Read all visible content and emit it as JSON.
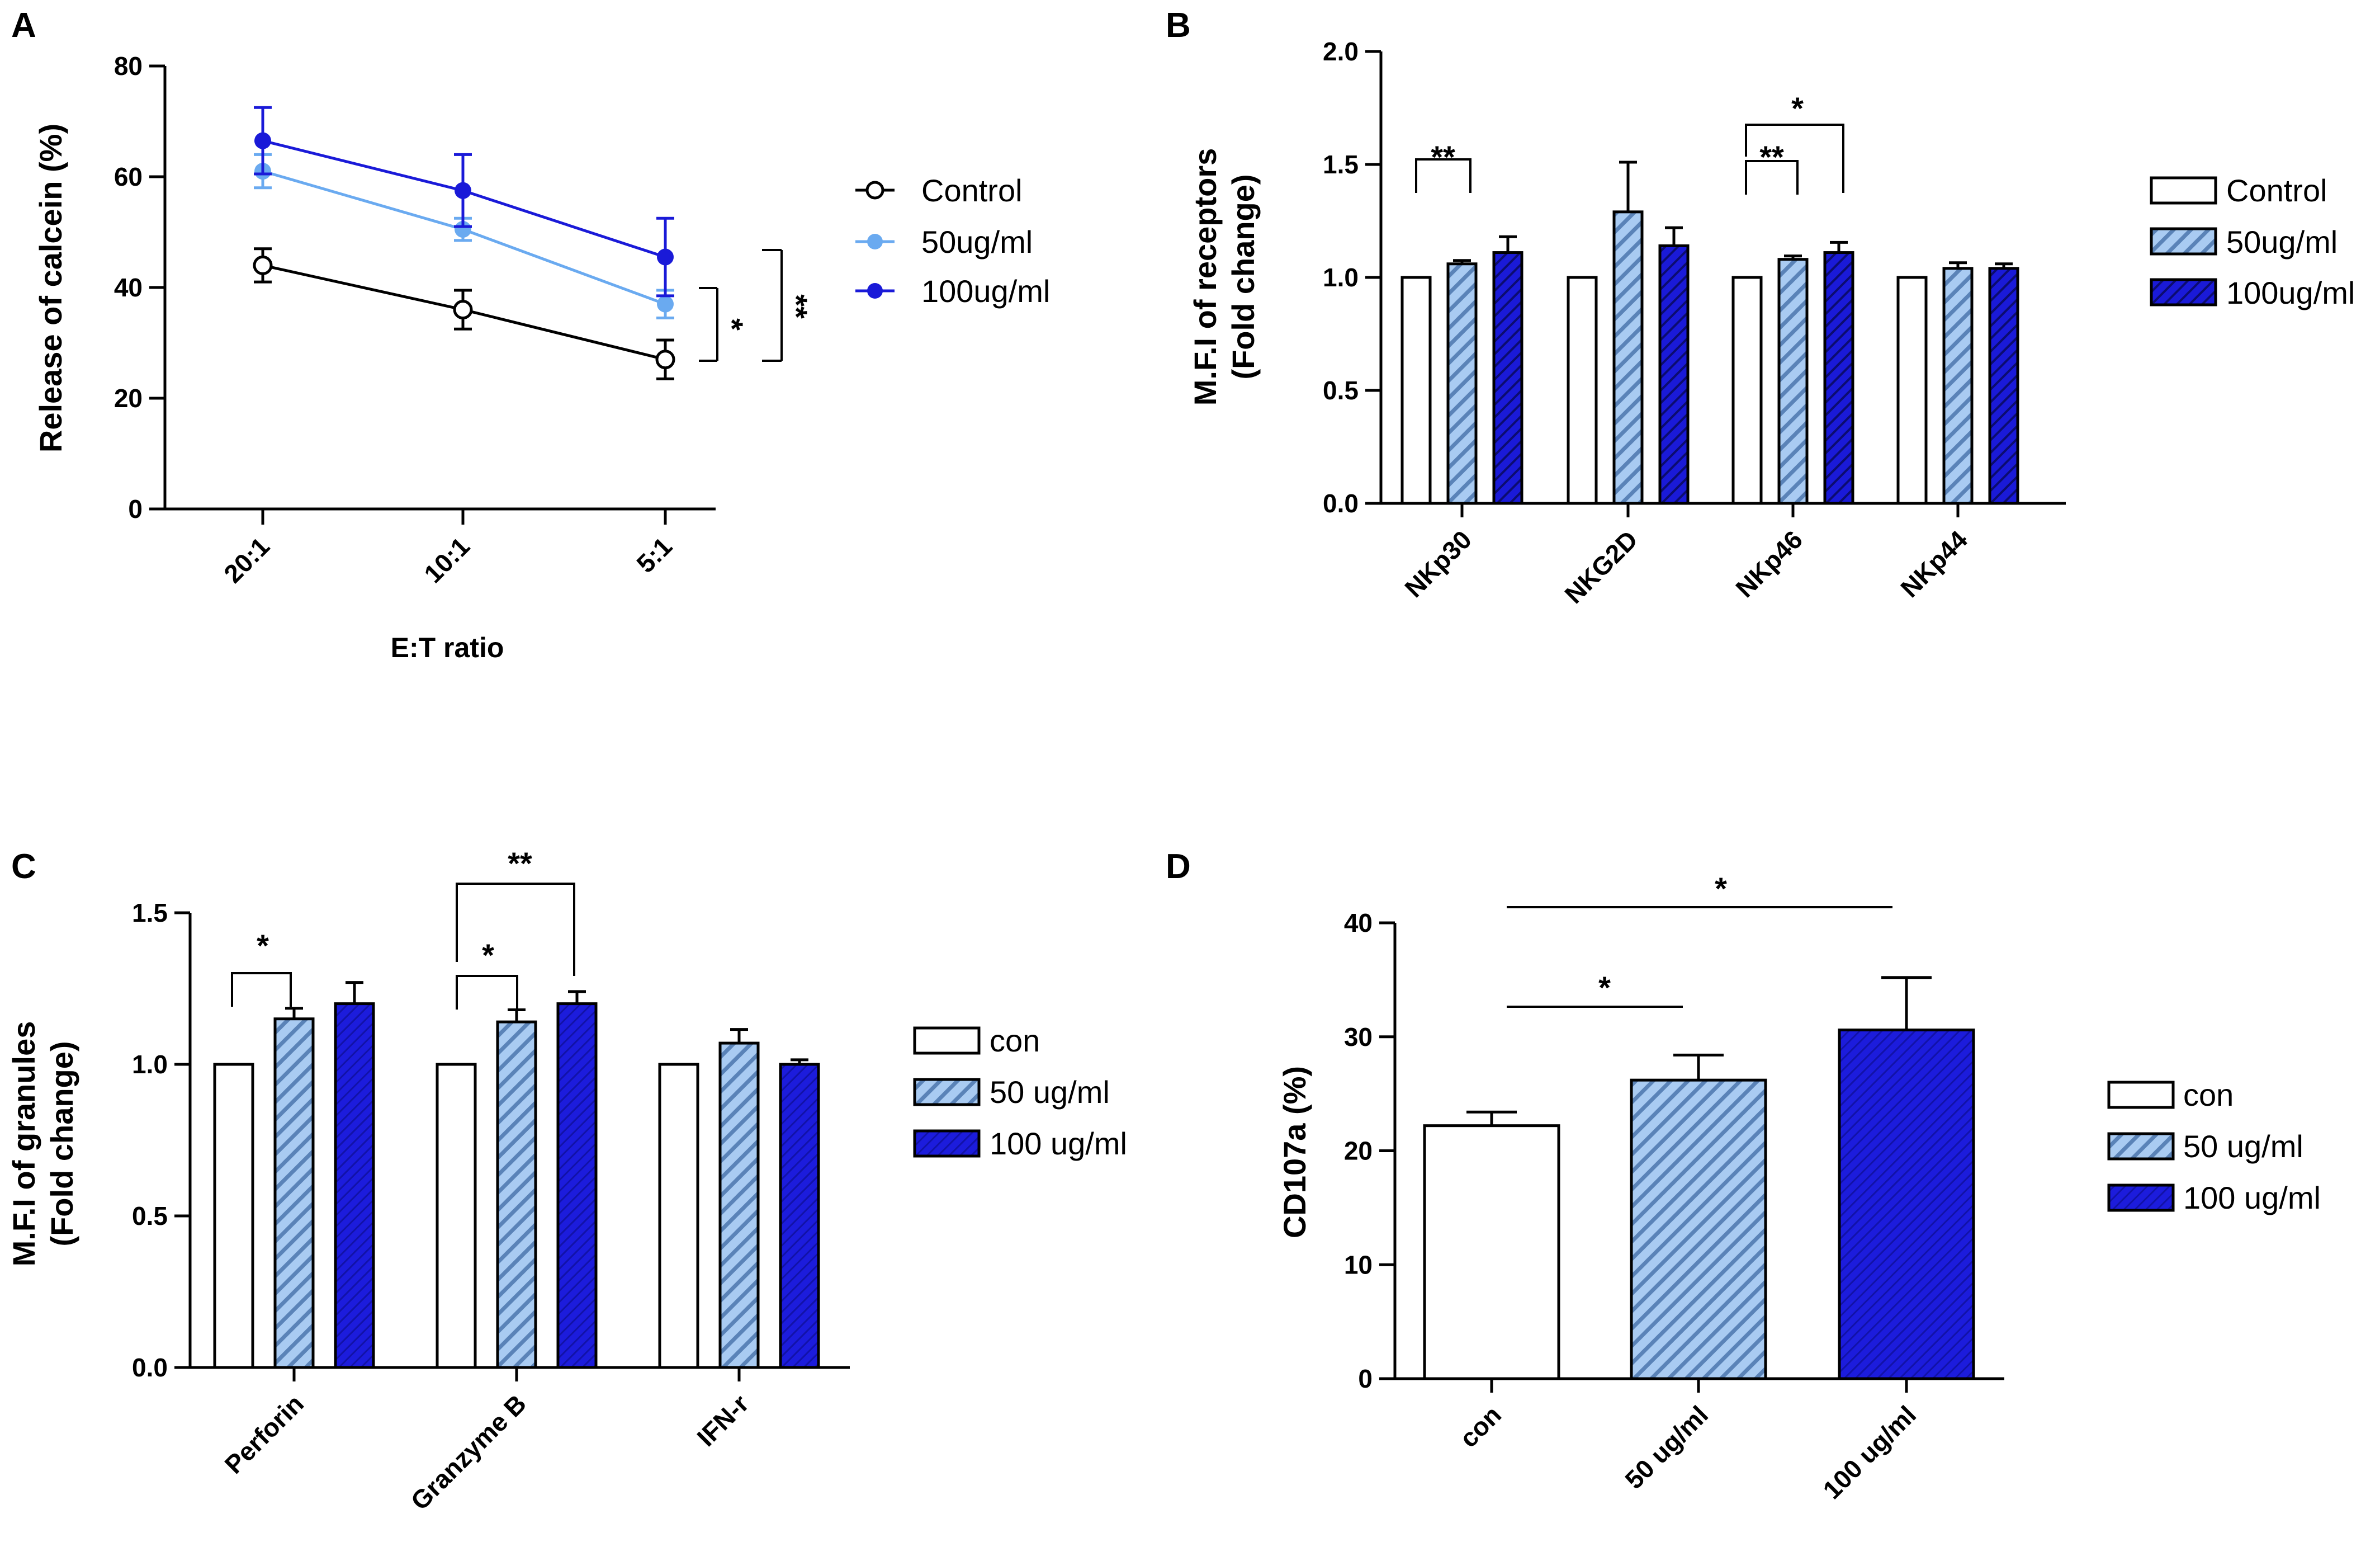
{
  "colors": {
    "control": "#ffffff",
    "light_blue": "#6aaaf0",
    "dark_blue": "#1a1ad8",
    "hatch_light": "#7aa8dc",
    "hatch_dark": "#10108a",
    "axis": "#000000"
  },
  "panels": [
    {
      "label": "A"
    },
    {
      "label": "B"
    },
    {
      "label": "C"
    },
    {
      "label": "D"
    }
  ],
  "chart_data": [
    {
      "panel": "A",
      "type": "line",
      "title": "",
      "xlabel": "E:T ratio",
      "ylabel": "Release of calcein (%)",
      "ylim": [
        0,
        80
      ],
      "yticks": [
        "0",
        "20",
        "40",
        "60",
        "80"
      ],
      "categories": [
        "20:1",
        "10:1",
        "5:1"
      ],
      "series": [
        {
          "name": "Control",
          "values": [
            44,
            36,
            27
          ],
          "errors": [
            3,
            3.5,
            3.5
          ]
        },
        {
          "name": "50ug/ml",
          "values": [
            61,
            50.5,
            37
          ],
          "errors": [
            3,
            2,
            2.5
          ]
        },
        {
          "name": "100ug/ml",
          "values": [
            66.5,
            57.5,
            45.5
          ],
          "errors": [
            6,
            6.5,
            7
          ]
        }
      ],
      "significance": [
        {
          "label": "*",
          "between": [
            "Control",
            "50ug/ml"
          ],
          "at": "5:1"
        },
        {
          "label": "**",
          "between": [
            "Control",
            "100ug/ml"
          ],
          "at": "5:1"
        }
      ],
      "legend": "right"
    },
    {
      "panel": "B",
      "type": "bar",
      "title": "",
      "xlabel": "",
      "ylabel_line1": "M.F.I of receptors",
      "ylabel_line2": "(Fold change)",
      "ylim": [
        0,
        2.0
      ],
      "yticks": [
        "0.0",
        "0.5",
        "1.0",
        "1.5",
        "2.0"
      ],
      "categories": [
        "NKp30",
        "NKG2D",
        "NKp46",
        "NKp44"
      ],
      "series": [
        {
          "name": "Control",
          "values": [
            1.0,
            1.0,
            1.0,
            1.0
          ],
          "errors": [
            0,
            0,
            0,
            0
          ]
        },
        {
          "name": "50ug/ml",
          "values": [
            1.06,
            1.29,
            1.08,
            1.04
          ],
          "errors": [
            0.015,
            0.22,
            0.015,
            0.025
          ]
        },
        {
          "name": "100ug/ml",
          "values": [
            1.11,
            1.14,
            1.11,
            1.04
          ],
          "errors": [
            0.07,
            0.08,
            0.045,
            0.02
          ]
        }
      ],
      "significance": [
        {
          "label": "**",
          "category": "NKp30",
          "between": [
            "Control",
            "50ug/ml"
          ]
        },
        {
          "label": "**",
          "category": "NKp46",
          "between": [
            "Control",
            "50ug/ml"
          ]
        },
        {
          "label": "*",
          "category": "NKp46",
          "between": [
            "Control",
            "100ug/ml"
          ]
        }
      ],
      "legend": "right"
    },
    {
      "panel": "C",
      "type": "bar",
      "title": "",
      "xlabel": "",
      "ylabel_line1": "M.F.I of granules",
      "ylabel_line2": "(Fold change)",
      "ylim": [
        0,
        1.5
      ],
      "yticks": [
        "0.0",
        "0.5",
        "1.0",
        "1.5"
      ],
      "categories": [
        "Perforin",
        "Granzyme B",
        "IFN-r"
      ],
      "series": [
        {
          "name": "con",
          "values": [
            1.0,
            1.0,
            1.0
          ],
          "errors": [
            0,
            0,
            0
          ]
        },
        {
          "name": "50 ug/ml",
          "values": [
            1.15,
            1.14,
            1.07
          ],
          "errors": [
            0.035,
            0.04,
            0.045
          ]
        },
        {
          "name": "100 ug/ml",
          "values": [
            1.2,
            1.2,
            1.0
          ],
          "errors": [
            0.07,
            0.04,
            0.015
          ]
        }
      ],
      "significance": [
        {
          "label": "*",
          "category": "Perforin",
          "between": [
            "con",
            "50 ug/ml"
          ]
        },
        {
          "label": "*",
          "category": "Granzyme B",
          "between": [
            "con",
            "50 ug/ml"
          ]
        },
        {
          "label": "**",
          "category": "Granzyme B",
          "between": [
            "con",
            "100 ug/ml"
          ]
        }
      ],
      "legend": "right"
    },
    {
      "panel": "D",
      "type": "bar",
      "title": "",
      "xlabel": "",
      "ylabel": "CD107a (%)",
      "ylim": [
        0,
        40
      ],
      "yticks": [
        "0",
        "10",
        "20",
        "30",
        "40"
      ],
      "categories": [
        "con",
        "50 ug/ml",
        "100 ug/ml"
      ],
      "values": [
        22.2,
        26.2,
        30.6
      ],
      "errors": [
        1.2,
        2.2,
        4.6
      ],
      "legend_labels": [
        "con",
        "50 ug/ml",
        "100 ug/ml"
      ],
      "significance": [
        {
          "label": "*",
          "between": [
            "con",
            "50 ug/ml"
          ]
        },
        {
          "label": "*",
          "between": [
            "con",
            "100 ug/ml"
          ]
        }
      ],
      "legend": "right"
    }
  ]
}
